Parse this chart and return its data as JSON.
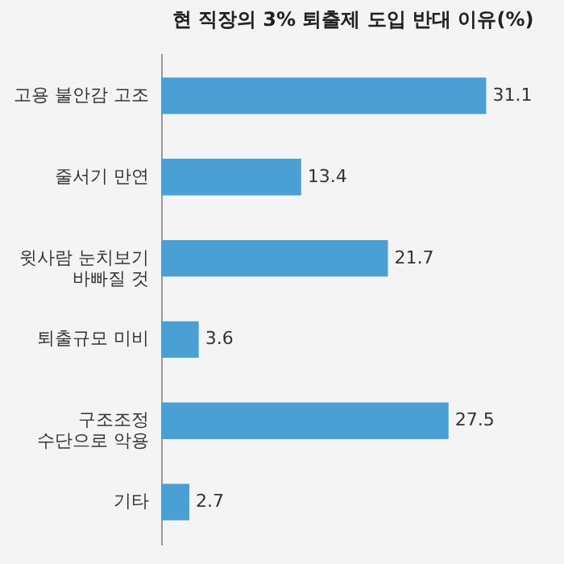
{
  "chart_data": {
    "type": "bar",
    "orientation": "horizontal",
    "title": "현 직장의 3% 퇴출제 도입 반대 이유(%)",
    "categories": [
      "고용 불안감 고조",
      "줄서기 만연",
      "윗사람 눈치보기\n바빠질 것",
      "퇴출규모 미비",
      "구조조정\n수단으로 악용",
      "기타"
    ],
    "values": [
      31.1,
      13.4,
      21.7,
      3.6,
      27.5,
      2.7
    ],
    "color": "#4a9fd4",
    "data_labels": true,
    "grid": false
  }
}
